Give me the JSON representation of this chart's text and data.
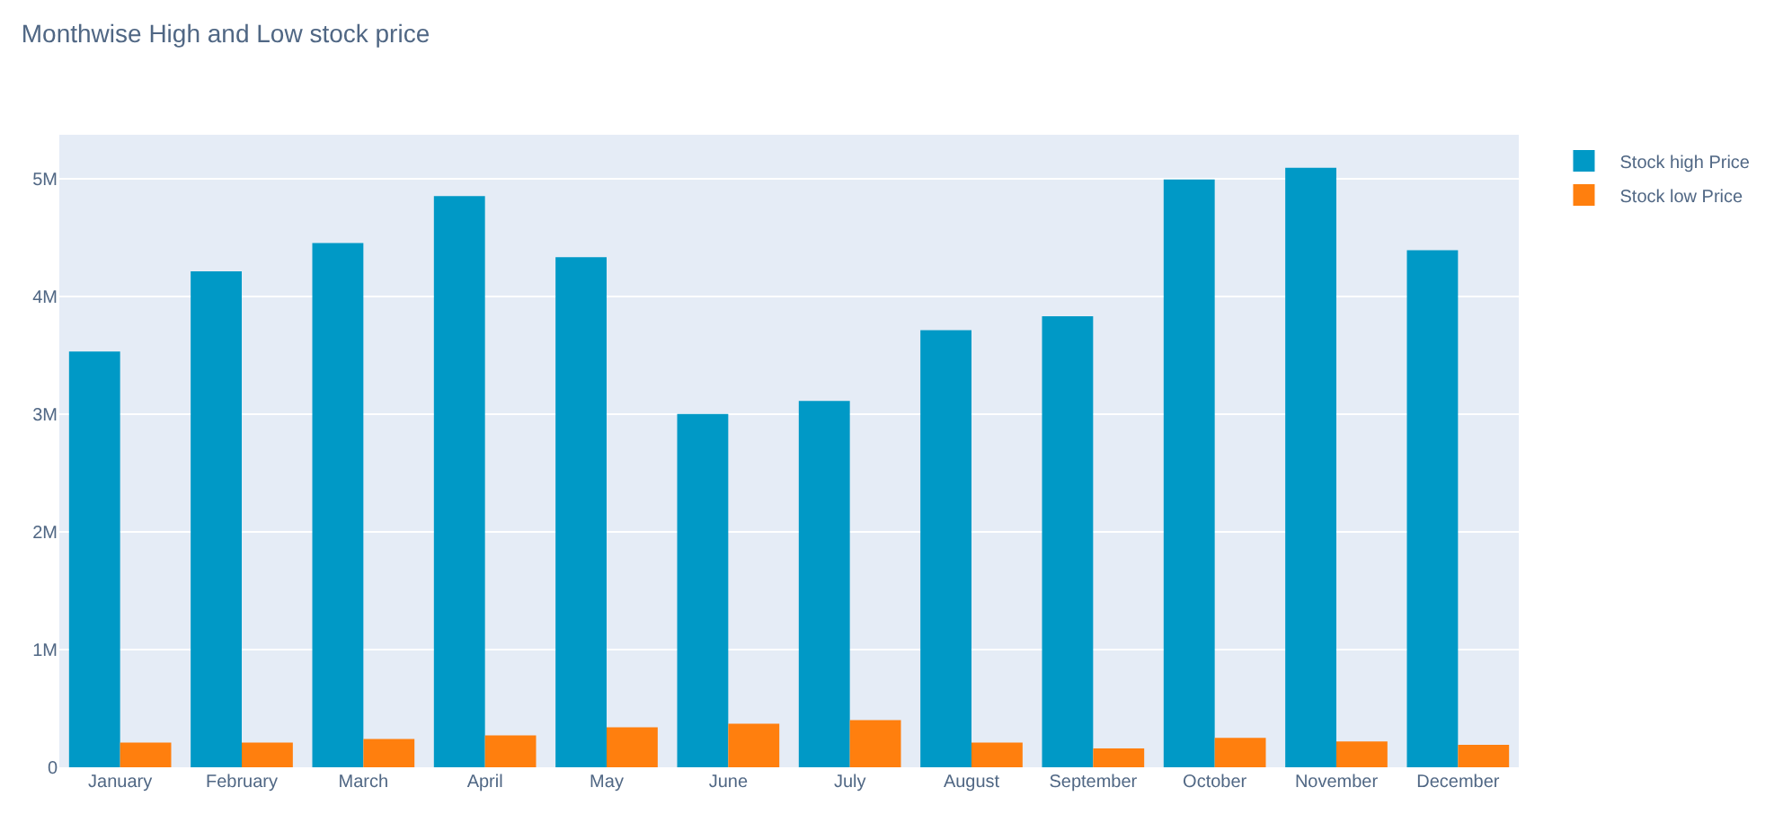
{
  "chart_data": {
    "type": "bar",
    "title": "Monthwise High and Low stock price",
    "categories": [
      "January",
      "February",
      "March",
      "April",
      "May",
      "June",
      "July",
      "August",
      "September",
      "October",
      "November",
      "December"
    ],
    "series": [
      {
        "name": "Stock high Price",
        "color": "#0099c6",
        "values": [
          3530000,
          4210000,
          4450000,
          4850000,
          4330000,
          3000000,
          3110000,
          3710000,
          3830000,
          4990000,
          5090000,
          4390000
        ]
      },
      {
        "name": "Stock low Price",
        "color": "#ff7f0e",
        "values": [
          210000,
          210000,
          240000,
          270000,
          340000,
          370000,
          400000,
          210000,
          160000,
          250000,
          220000,
          190000
        ]
      }
    ],
    "ylim": [
      0,
      5370000
    ],
    "yticks": [
      0,
      {
        "value": 1000000,
        "label": "1M"
      },
      {
        "value": 2000000,
        "label": "2M"
      },
      {
        "value": 3000000,
        "label": "3M"
      },
      {
        "value": 4000000,
        "label": "4M"
      },
      {
        "value": 5000000,
        "label": "5M"
      }
    ],
    "grid": "y",
    "legend": "top right"
  }
}
